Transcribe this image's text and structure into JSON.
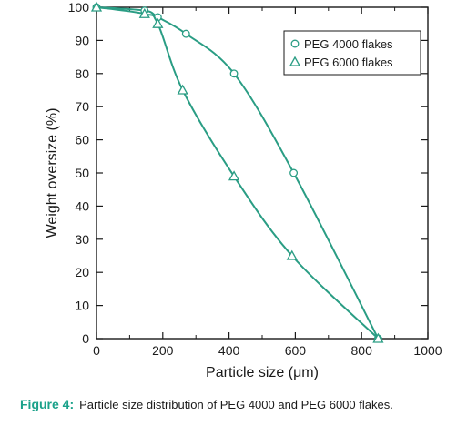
{
  "chart_data": {
    "type": "line",
    "xlabel": "Particle size (μm)",
    "ylabel": "Weight oversize (%)",
    "xlim": [
      0,
      1000
    ],
    "ylim": [
      0,
      100
    ],
    "xticks": [
      "0",
      "200",
      "400",
      "600",
      "800",
      "1000"
    ],
    "yticks": [
      "0",
      "10",
      "20",
      "30",
      "40",
      "50",
      "60",
      "70",
      "80",
      "90",
      "100"
    ],
    "grid": false,
    "legend_position": "top-right",
    "series": [
      {
        "name": "PEG 4000 flakes",
        "marker": "circle",
        "x": [
          0,
          145,
          185,
          270,
          415,
          595,
          850
        ],
        "y": [
          100,
          99,
          97,
          92,
          80,
          50,
          0
        ]
      },
      {
        "name": "PEG 6000 flakes",
        "marker": "triangle",
        "x": [
          0,
          145,
          185,
          260,
          415,
          590,
          850
        ],
        "y": [
          100,
          98,
          95,
          75,
          49,
          25,
          0
        ]
      }
    ]
  },
  "colors": {
    "line": "#2a9d84",
    "axis": "#1a1a1a",
    "caption_accent": "#1aa18a"
  },
  "caption": {
    "label": "Figure 4:",
    "text": "Particle size distribution of PEG 4000 and PEG 6000 flakes."
  }
}
